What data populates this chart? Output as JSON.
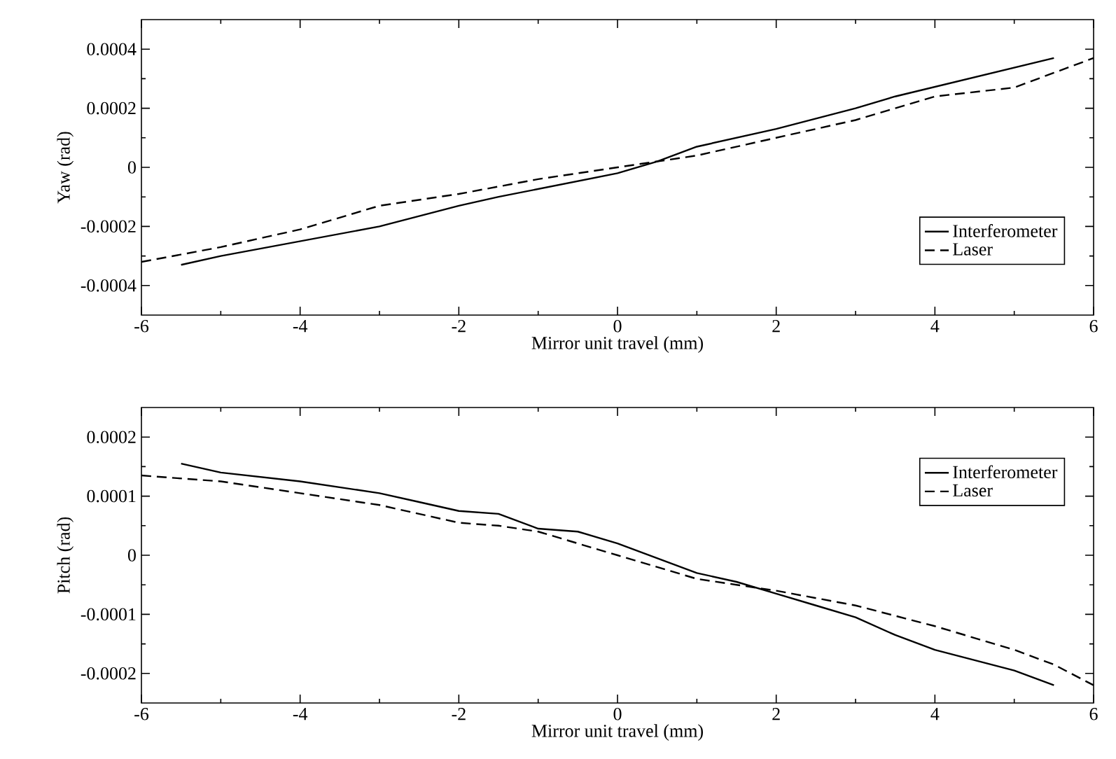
{
  "chart_data": [
    {
      "type": "line",
      "xlabel": "Mirror unit travel (mm)",
      "ylabel": "Yaw (rad)",
      "xlim": [
        -6,
        6
      ],
      "ylim": [
        -0.0005,
        0.0005
      ],
      "xticks": [
        -6,
        -4,
        -2,
        0,
        2,
        4,
        6
      ],
      "yticks": [
        -0.0004,
        -0.0002,
        0,
        0.0002,
        0.0004
      ],
      "grid": false,
      "legend": "right",
      "marker": "none",
      "series": [
        {
          "name": "Interferometer",
          "color": "#000000",
          "line_style": "solid",
          "x": [
            -5.5,
            -5,
            -3,
            -2,
            -1.5,
            0,
            0.5,
            1,
            2,
            3,
            3.5,
            5.5
          ],
          "values": [
            -0.00033,
            -0.0003,
            -0.0002,
            -0.00013,
            -0.0001,
            -2e-05,
            2e-05,
            7e-05,
            0.00013,
            0.0002,
            0.00024,
            0.00037
          ]
        },
        {
          "name": "Laser",
          "color": "#000000",
          "line_style": "dashed",
          "x": [
            -6,
            -5,
            -4,
            -3,
            -2,
            -1,
            0,
            1,
            2,
            3,
            3.5,
            4,
            5,
            5.5,
            6
          ],
          "values": [
            -0.00032,
            -0.00027,
            -0.00021,
            -0.00013,
            -9e-05,
            -4e-05,
            0,
            4e-05,
            0.0001,
            0.00016,
            0.0002,
            0.00024,
            0.00027,
            0.00032,
            0.00037
          ]
        }
      ]
    },
    {
      "type": "line",
      "xlabel": "Mirror unit travel (mm)",
      "ylabel": "Pitch (rad)",
      "xlim": [
        -6,
        6
      ],
      "ylim": [
        -0.00025,
        0.00025
      ],
      "xticks": [
        -6,
        -4,
        -2,
        0,
        2,
        4,
        6
      ],
      "yticks": [
        -0.0002,
        -0.0001,
        0,
        0.0001,
        0.0002
      ],
      "grid": false,
      "legend": "top right",
      "marker": "none",
      "series": [
        {
          "name": "Interferometer",
          "color": "#000000",
          "line_style": "solid",
          "x": [
            -5.5,
            -5,
            -4,
            -3,
            -2.5,
            -2,
            -1.5,
            -1,
            -0.5,
            0,
            1,
            1.5,
            2,
            2.5,
            3,
            3.5,
            4,
            5,
            5.5
          ],
          "values": [
            0.000155,
            0.00014,
            0.000125,
            0.000105,
            9e-05,
            7.5e-05,
            7e-05,
            4.5e-05,
            4e-05,
            2e-05,
            -3e-05,
            -4.5e-05,
            -6.5e-05,
            -8.5e-05,
            -0.000105,
            -0.000135,
            -0.00016,
            -0.000195,
            -0.00022
          ]
        },
        {
          "name": "Laser",
          "color": "#000000",
          "line_style": "dashed",
          "x": [
            -6,
            -5,
            -4,
            -3,
            -2,
            -1.5,
            -1,
            -0.5,
            0,
            1,
            1.5,
            2,
            3,
            4,
            5,
            5.5,
            6
          ],
          "values": [
            0.000135,
            0.000125,
            0.000105,
            8.5e-05,
            5.5e-05,
            5e-05,
            4e-05,
            2e-05,
            0,
            -4e-05,
            -5e-05,
            -6e-05,
            -8.5e-05,
            -0.00012,
            -0.00016,
            -0.000185,
            -0.00022
          ]
        }
      ]
    }
  ]
}
